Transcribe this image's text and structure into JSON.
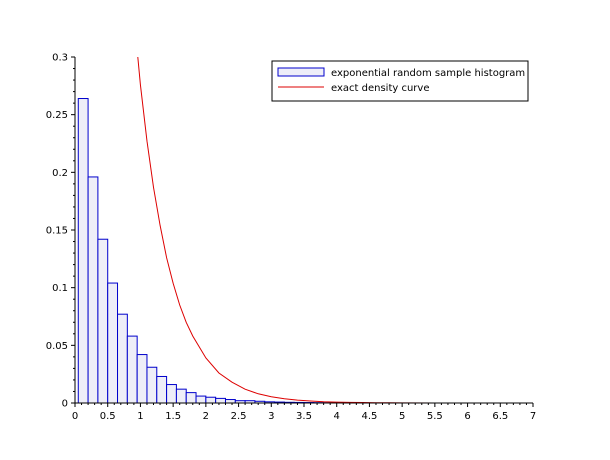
{
  "chart_data": {
    "type": "bar",
    "title": "",
    "xlabel": "",
    "ylabel": "",
    "xlim": [
      0,
      7
    ],
    "ylim": [
      0,
      0.3
    ],
    "x_ticks": [
      "0",
      "0.5",
      "1",
      "1.5",
      "2",
      "2.5",
      "3",
      "3.5",
      "4",
      "4.5",
      "5",
      "5.5",
      "6",
      "6.5",
      "7"
    ],
    "y_ticks": [
      "0",
      "0.05",
      "0.1",
      "0.15",
      "0.2",
      "0.25",
      "0.3"
    ],
    "grid": false,
    "legend_position": "top-right",
    "series": [
      {
        "name": "exponential random sample histogram",
        "kind": "histogram",
        "bin_width": 0.15,
        "bin_starts": [
          0.05,
          0.2,
          0.35,
          0.5,
          0.65,
          0.8,
          0.95,
          1.1,
          1.25,
          1.4,
          1.55,
          1.7,
          1.85,
          2.0,
          2.15,
          2.3,
          2.45,
          2.6,
          2.75,
          2.9,
          3.05,
          3.2,
          3.35,
          3.5,
          3.65,
          3.8,
          3.95,
          4.1
        ],
        "values": [
          0.264,
          0.196,
          0.142,
          0.104,
          0.077,
          0.058,
          0.042,
          0.031,
          0.023,
          0.016,
          0.012,
          0.009,
          0.006,
          0.005,
          0.004,
          0.003,
          0.002,
          0.002,
          0.0015,
          0.001,
          0.0008,
          0.0006,
          0.0005,
          0.0004,
          0.0003,
          0.0002,
          0.0002,
          0.0001
        ],
        "stroke": "#0000cc",
        "fill": "#eeeef8"
      },
      {
        "name": "exact density curve",
        "kind": "line",
        "x": [
          0.96,
          1.0,
          1.1,
          1.2,
          1.3,
          1.4,
          1.5,
          1.6,
          1.7,
          1.8,
          2.0,
          2.2,
          2.4,
          2.6,
          2.8,
          3.0,
          3.2,
          3.4,
          3.6,
          3.8,
          4.0,
          4.2,
          4.4,
          4.6,
          4.8,
          5.0,
          5.5,
          6.0,
          6.2
        ],
        "values": [
          0.3,
          0.276,
          0.227,
          0.187,
          0.154,
          0.126,
          0.104,
          0.085,
          0.07,
          0.058,
          0.039,
          0.026,
          0.018,
          0.012,
          0.008,
          0.0055,
          0.0037,
          0.0025,
          0.0017,
          0.0011,
          0.0008,
          0.0005,
          0.0004,
          0.0002,
          0.0002,
          0.0001,
          4e-05,
          1e-05,
          0.0
        ],
        "stroke": "#dd0000"
      }
    ]
  }
}
